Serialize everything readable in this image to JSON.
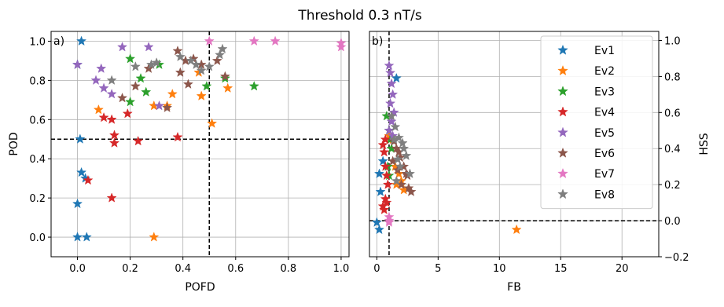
{
  "chart_data": {
    "title": "Threshold 0.3 nT/s",
    "colors": {
      "Ev1": "#1f77b4",
      "Ev2": "#ff7f0e",
      "Ev3": "#2ca02c",
      "Ev4": "#d62728",
      "Ev5": "#9467bd",
      "Ev6": "#8c564b",
      "Ev7": "#e377c2",
      "Ev8": "#7f7f7f"
    },
    "panels": [
      {
        "id": "a",
        "label": "a)",
        "type": "scatter",
        "xlabel": "POFD",
        "ylabel": "POD",
        "xlim": [
          -0.1,
          1.03
        ],
        "ylim": [
          -0.1,
          1.05
        ],
        "xticks": [
          0.0,
          0.2,
          0.4,
          0.6,
          0.8,
          1.0
        ],
        "xtick_labels": [
          "0.0",
          "0.2",
          "0.4",
          "0.6",
          "0.8",
          "1.0"
        ],
        "yticks": [
          0.0,
          0.2,
          0.4,
          0.6,
          0.8,
          1.0
        ],
        "ytick_labels": [
          "0.0",
          "0.2",
          "0.4",
          "0.6",
          "0.8",
          "1.0"
        ],
        "grid": true,
        "hline": 0.5,
        "vline": 0.5,
        "series": [
          {
            "name": "Ev1",
            "x": [
              0.015,
              0.0,
              0.01,
              0.015,
              0.03,
              0.0,
              0.0,
              0.035
            ],
            "y": [
              1.0,
              0.88,
              0.5,
              0.33,
              0.3,
              0.17,
              0.0,
              0.0
            ]
          },
          {
            "name": "Ev2",
            "x": [
              0.08,
              0.29,
              0.36,
              0.34,
              0.47,
              0.46,
              0.51,
              0.57,
              0.29
            ],
            "y": [
              0.65,
              0.67,
              0.73,
              0.67,
              0.72,
              0.84,
              0.58,
              0.76,
              0.0
            ]
          },
          {
            "name": "Ev3",
            "x": [
              0.2,
              0.24,
              0.2,
              0.26,
              0.31,
              0.49,
              0.56,
              0.67
            ],
            "y": [
              0.91,
              0.81,
              0.69,
              0.74,
              0.88,
              0.77,
              0.81,
              0.77
            ]
          },
          {
            "name": "Ev4",
            "x": [
              0.1,
              0.13,
              0.19,
              0.14,
              0.14,
              0.23,
              0.38,
              0.04,
              0.13
            ],
            "y": [
              0.61,
              0.6,
              0.63,
              0.52,
              0.48,
              0.49,
              0.51,
              0.29,
              0.2
            ]
          },
          {
            "name": "Ev5",
            "x": [
              0.0,
              0.07,
              0.09,
              0.17,
              0.27,
              0.13,
              0.1,
              0.31
            ],
            "y": [
              0.88,
              0.8,
              0.86,
              0.97,
              0.97,
              0.73,
              0.76,
              0.67
            ]
          },
          {
            "name": "Ev6",
            "x": [
              0.17,
              0.22,
              0.27,
              0.38,
              0.41,
              0.44,
              0.47,
              0.53,
              0.56,
              0.39,
              0.34,
              0.42
            ],
            "y": [
              0.71,
              0.77,
              0.86,
              0.95,
              0.9,
              0.91,
              0.88,
              0.9,
              0.82,
              0.84,
              0.66,
              0.78
            ]
          },
          {
            "name": "Ev7",
            "x": [
              0.5,
              0.67,
              0.75,
              1.0,
              1.0
            ],
            "y": [
              1.0,
              1.0,
              1.0,
              0.99,
              0.97
            ]
          },
          {
            "name": "Ev8",
            "x": [
              0.13,
              0.22,
              0.28,
              0.3,
              0.39,
              0.43,
              0.45,
              0.47,
              0.5,
              0.54,
              0.55
            ],
            "y": [
              0.8,
              0.87,
              0.88,
              0.89,
              0.92,
              0.9,
              0.88,
              0.85,
              0.87,
              0.93,
              0.96
            ]
          }
        ]
      },
      {
        "id": "b",
        "label": "b)",
        "type": "scatter",
        "xlabel": "FB",
        "ylabel": "HSS",
        "xlim": [
          -0.6,
          23.0
        ],
        "ylim": [
          -0.2,
          1.05
        ],
        "xticks": [
          0,
          5,
          10,
          15,
          20
        ],
        "xtick_labels": [
          "0",
          "5",
          "10",
          "15",
          "20"
        ],
        "yticks": [
          -0.2,
          0.0,
          0.2,
          0.4,
          0.6,
          0.8,
          1.0
        ],
        "ytick_labels": [
          "−0.2",
          "0.0",
          "0.2",
          "0.4",
          "0.6",
          "0.8",
          "1.0"
        ],
        "grid": true,
        "hline": 0.0,
        "vline": 1.0,
        "legend": {
          "placement": "top-right",
          "entries": [
            "Ev1",
            "Ev2",
            "Ev3",
            "Ev4",
            "Ev5",
            "Ev6",
            "Ev7",
            "Ev8"
          ]
        },
        "series": [
          {
            "name": "Ev1",
            "x": [
              1.6,
              0.5,
              0.2,
              0.3,
              0.0,
              0.2
            ],
            "y": [
              0.79,
              0.33,
              0.26,
              0.16,
              -0.01,
              -0.05
            ]
          },
          {
            "name": "Ev2",
            "x": [
              1.0,
              1.3,
              1.5,
              1.6,
              1.8,
              2.0,
              2.2,
              11.4
            ],
            "y": [
              0.47,
              0.45,
              0.3,
              0.2,
              0.26,
              0.22,
              0.17,
              -0.05
            ]
          },
          {
            "name": "Ev3",
            "x": [
              0.8,
              1.0,
              1.1,
              1.2,
              1.0,
              0.9
            ],
            "y": [
              0.58,
              0.5,
              0.45,
              0.4,
              0.25,
              0.3
            ]
          },
          {
            "name": "Ev4",
            "x": [
              0.5,
              0.6,
              0.7,
              0.8,
              0.9,
              0.7,
              0.5,
              0.6,
              0.8,
              0.7
            ],
            "y": [
              0.42,
              0.38,
              0.3,
              0.25,
              0.2,
              0.12,
              0.08,
              0.06,
              0.1,
              0.45
            ]
          },
          {
            "name": "Ev5",
            "x": [
              1.0,
              1.1,
              1.2,
              1.3,
              1.1,
              1.4,
              1.2,
              1.0,
              1.3
            ],
            "y": [
              0.86,
              0.82,
              0.76,
              0.7,
              0.65,
              0.6,
              0.55,
              0.5,
              0.47
            ]
          },
          {
            "name": "Ev6",
            "x": [
              1.4,
              1.6,
              1.9,
              2.2,
              2.5,
              2.8,
              2.0,
              1.7,
              1.3,
              1.8,
              2.4,
              2.6
            ],
            "y": [
              0.44,
              0.4,
              0.35,
              0.3,
              0.25,
              0.16,
              0.2,
              0.28,
              0.33,
              0.38,
              0.26,
              0.18
            ]
          },
          {
            "name": "Ev7",
            "x": [
              1.0,
              1.0,
              1.0
            ],
            "y": [
              0.02,
              0.0,
              -0.01
            ]
          },
          {
            "name": "Ev8",
            "x": [
              1.2,
              1.5,
              1.8,
              2.1,
              2.4,
              2.7,
              1.6,
              1.9,
              2.2,
              1.4,
              1.7
            ],
            "y": [
              0.58,
              0.52,
              0.46,
              0.43,
              0.36,
              0.26,
              0.22,
              0.3,
              0.4,
              0.45,
              0.34
            ]
          }
        ]
      }
    ]
  }
}
